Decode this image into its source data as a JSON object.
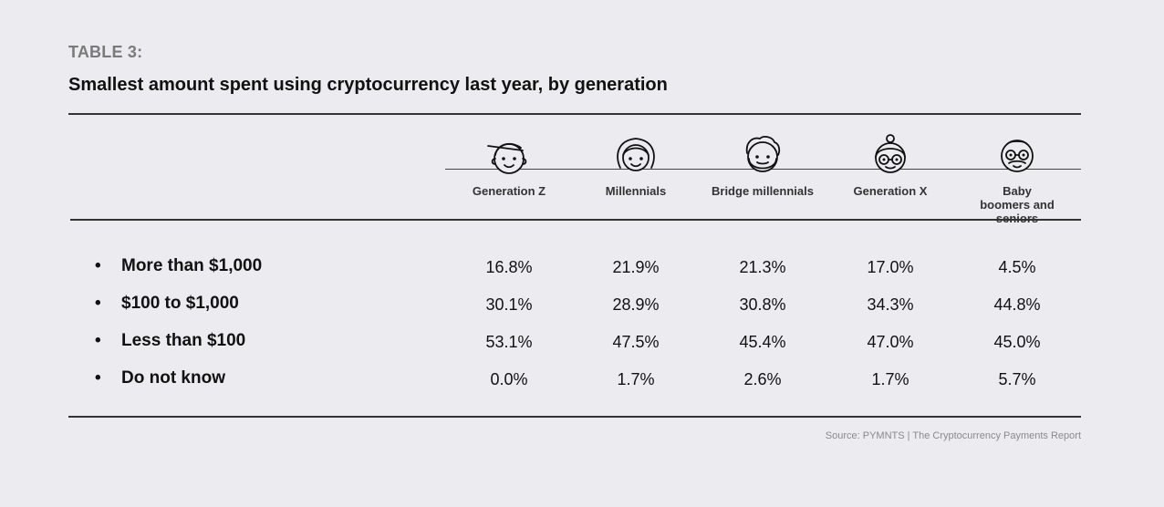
{
  "header": {
    "table_label": "TABLE 3:",
    "title": "Smallest amount spent using cryptocurrency last year, by generation"
  },
  "chart_data": {
    "type": "table",
    "title": "Smallest amount spent using cryptocurrency last year, by generation",
    "columns": [
      {
        "name": "Generation Z",
        "icon": "gen-z-face-icon"
      },
      {
        "name": "Millennials",
        "icon": "millennial-face-icon"
      },
      {
        "name": "Bridge millennials",
        "icon": "bridge-millennial-face-icon"
      },
      {
        "name": "Generation X",
        "icon": "gen-x-face-icon"
      },
      {
        "name": "Baby boomers and seniors",
        "icon": "baby-boomer-face-icon"
      }
    ],
    "rows": [
      {
        "label": "More than $1,000",
        "values": [
          "16.8%",
          "21.9%",
          "21.3%",
          "17.0%",
          "4.5%"
        ]
      },
      {
        "label": "$100 to $1,000",
        "values": [
          "30.1%",
          "28.9%",
          "30.8%",
          "34.3%",
          "44.8%"
        ]
      },
      {
        "label": "Less than $100",
        "values": [
          "53.1%",
          "47.5%",
          "45.4%",
          "47.0%",
          "45.0%"
        ]
      },
      {
        "label": "Do not know",
        "values": [
          "0.0%",
          "1.7%",
          "2.6%",
          "1.7%",
          "5.7%"
        ]
      }
    ]
  },
  "bullet": "•",
  "source": "Source: PYMNTS | The Cryptocurrency Payments Report"
}
